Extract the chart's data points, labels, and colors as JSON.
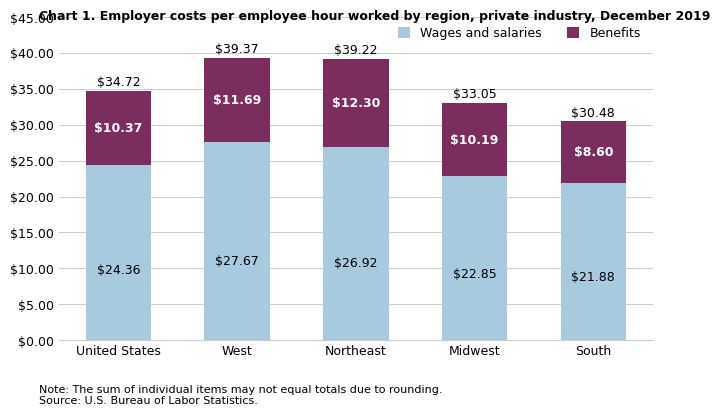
{
  "title": "Chart 1. Employer costs per employee hour worked by region, private industry, December 2019",
  "categories": [
    "United States",
    "West",
    "Northeast",
    "Midwest",
    "South"
  ],
  "wages": [
    24.36,
    27.67,
    26.92,
    22.85,
    21.88
  ],
  "benefits": [
    10.37,
    11.69,
    12.3,
    10.19,
    8.6
  ],
  "totals": [
    34.72,
    39.37,
    39.22,
    33.05,
    30.48
  ],
  "wages_color": "#a8cadf",
  "benefits_color": "#7B2D5E",
  "wages_label": "Wages and salaries",
  "benefits_label": "Benefits",
  "ylim": [
    0,
    45
  ],
  "yticks": [
    0,
    5,
    10,
    15,
    20,
    25,
    30,
    35,
    40,
    45
  ],
  "note": "Note: The sum of individual items may not equal totals due to rounding.",
  "source": "Source: U.S. Bureau of Labor Statistics.",
  "title_fontsize": 9,
  "label_fontsize": 9,
  "tick_fontsize": 9,
  "note_fontsize": 8,
  "bar_width": 0.55
}
